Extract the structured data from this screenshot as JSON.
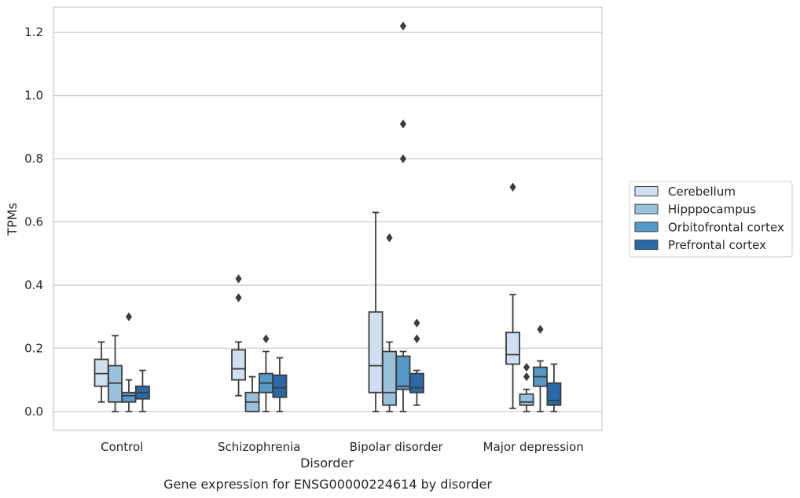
{
  "chart_data": {
    "type": "box",
    "caption": "Gene expression for ENSG00000224614 by disorder",
    "xlabel": "Disorder",
    "ylabel": "TPMs",
    "ylim": [
      -0.06,
      1.28
    ],
    "yticks": [
      0.0,
      0.2,
      0.4,
      0.6,
      0.8,
      1.0,
      1.2
    ],
    "ytick_labels": [
      "0.0",
      "0.2",
      "0.4",
      "0.6",
      "0.8",
      "1.0",
      "1.2"
    ],
    "grid": "horizontal",
    "legend_position": "right",
    "categories": [
      "Control",
      "Schizophrenia",
      "Bipolar disorder",
      "Major depression"
    ],
    "series": [
      {
        "name": "Cerebellum",
        "color": "#d1e0f0",
        "boxes": [
          {
            "whislo": 0.03,
            "q1": 0.08,
            "med": 0.12,
            "q3": 0.165,
            "whishi": 0.22,
            "fliers": []
          },
          {
            "whislo": 0.05,
            "q1": 0.1,
            "med": 0.135,
            "q3": 0.195,
            "whishi": 0.22,
            "fliers": [
              0.36,
              0.42
            ]
          },
          {
            "whislo": 0.0,
            "q1": 0.06,
            "med": 0.145,
            "q3": 0.315,
            "whishi": 0.63,
            "fliers": []
          },
          {
            "whislo": 0.01,
            "q1": 0.15,
            "med": 0.18,
            "q3": 0.25,
            "whishi": 0.37,
            "fliers": [
              0.71
            ]
          }
        ]
      },
      {
        "name": "Hipppocampus",
        "color": "#9ac1dc",
        "boxes": [
          {
            "whislo": 0.0,
            "q1": 0.03,
            "med": 0.09,
            "q3": 0.145,
            "whishi": 0.24,
            "fliers": []
          },
          {
            "whislo": 0.0,
            "q1": 0.0,
            "med": 0.03,
            "q3": 0.06,
            "whishi": 0.11,
            "fliers": []
          },
          {
            "whislo": 0.0,
            "q1": 0.02,
            "med": 0.06,
            "q3": 0.19,
            "whishi": 0.22,
            "fliers": [
              0.55
            ]
          },
          {
            "whislo": 0.0,
            "q1": 0.02,
            "med": 0.03,
            "q3": 0.055,
            "whishi": 0.07,
            "fliers": [
              0.11,
              0.14
            ]
          }
        ]
      },
      {
        "name": "Orbitofrontal cortex",
        "color": "#5599c8",
        "boxes": [
          {
            "whislo": 0.0,
            "q1": 0.03,
            "med": 0.05,
            "q3": 0.06,
            "whishi": 0.1,
            "fliers": [
              0.3
            ]
          },
          {
            "whislo": 0.0,
            "q1": 0.06,
            "med": 0.09,
            "q3": 0.12,
            "whishi": 0.19,
            "fliers": [
              0.23
            ]
          },
          {
            "whislo": 0.0,
            "q1": 0.07,
            "med": 0.08,
            "q3": 0.175,
            "whishi": 0.19,
            "fliers": [
              0.8,
              0.91,
              1.22
            ]
          },
          {
            "whislo": 0.0,
            "q1": 0.08,
            "med": 0.11,
            "q3": 0.14,
            "whishi": 0.16,
            "fliers": [
              0.26
            ]
          }
        ]
      },
      {
        "name": "Prefrontal cortex",
        "color": "#2a69a8",
        "boxes": [
          {
            "whislo": 0.0,
            "q1": 0.04,
            "med": 0.06,
            "q3": 0.08,
            "whishi": 0.13,
            "fliers": []
          },
          {
            "whislo": 0.0,
            "q1": 0.045,
            "med": 0.075,
            "q3": 0.115,
            "whishi": 0.17,
            "fliers": []
          },
          {
            "whislo": 0.02,
            "q1": 0.06,
            "med": 0.075,
            "q3": 0.12,
            "whishi": 0.13,
            "fliers": [
              0.23,
              0.28
            ]
          },
          {
            "whislo": 0.0,
            "q1": 0.02,
            "med": 0.035,
            "q3": 0.09,
            "whishi": 0.15,
            "fliers": []
          }
        ]
      }
    ]
  }
}
